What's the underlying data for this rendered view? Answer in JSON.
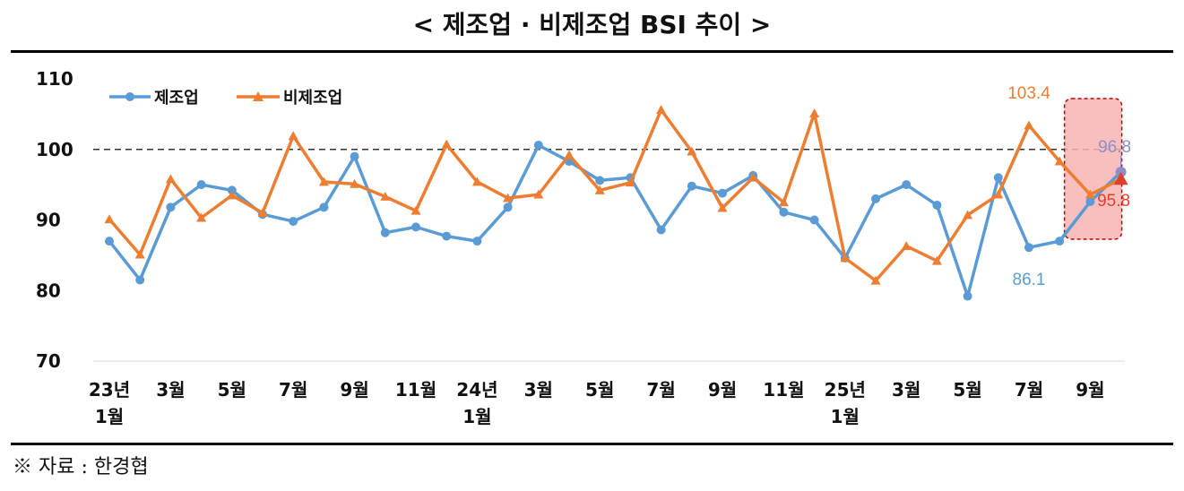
{
  "title": "< 제조업 · 비제조업 BSI 추이 >",
  "source": "※ 자료 : 한경협",
  "colors": {
    "manufacturing": "#5B9BD5",
    "non_manufacturing": "#ED7D31",
    "highlight_fill": "#F8B4B4",
    "highlight_border": "#C00000",
    "reference_line": "#333333"
  },
  "chart_data": {
    "type": "line",
    "title": "< 제조업 · 비제조업 BSI 추이 >",
    "xlabel": "",
    "ylabel": "",
    "ylim": [
      70,
      110
    ],
    "yticks": [
      70,
      80,
      90,
      100,
      110
    ],
    "reference_line": 100,
    "grid": false,
    "legend_position": "top-left",
    "x": [
      "23년 1월",
      "23년 2월",
      "23년 3월",
      "23년 4월",
      "23년 5월",
      "23년 6월",
      "23년 7월",
      "23년 8월",
      "23년 9월",
      "23년 10월",
      "23년 11월",
      "23년 12월",
      "24년 1월",
      "24년 2월",
      "24년 3월",
      "24년 4월",
      "24년 5월",
      "24년 6월",
      "24년 7월",
      "24년 8월",
      "24년 9월",
      "24년 10월",
      "24년 11월",
      "24년 12월",
      "25년 1월",
      "25년 2월",
      "25년 3월",
      "25년 4월",
      "25년 5월",
      "25년 6월",
      "25년 7월",
      "25년 8월",
      "25년 9월",
      "25년 10월"
    ],
    "xtick_labels": [
      {
        "index": 0,
        "lines": [
          "23년",
          "1월"
        ]
      },
      {
        "index": 2,
        "lines": [
          "3월"
        ]
      },
      {
        "index": 4,
        "lines": [
          "5월"
        ]
      },
      {
        "index": 6,
        "lines": [
          "7월"
        ]
      },
      {
        "index": 8,
        "lines": [
          "9월"
        ]
      },
      {
        "index": 10,
        "lines": [
          "11월"
        ]
      },
      {
        "index": 12,
        "lines": [
          "24년",
          "1월"
        ]
      },
      {
        "index": 14,
        "lines": [
          "3월"
        ]
      },
      {
        "index": 16,
        "lines": [
          "5월"
        ]
      },
      {
        "index": 18,
        "lines": [
          "7월"
        ]
      },
      {
        "index": 20,
        "lines": [
          "9월"
        ]
      },
      {
        "index": 22,
        "lines": [
          "11월"
        ]
      },
      {
        "index": 24,
        "lines": [
          "25년",
          "1월"
        ]
      },
      {
        "index": 26,
        "lines": [
          "3월"
        ]
      },
      {
        "index": 28,
        "lines": [
          "5월"
        ]
      },
      {
        "index": 30,
        "lines": [
          "7월"
        ]
      },
      {
        "index": 32,
        "lines": [
          "9월"
        ]
      }
    ],
    "series": [
      {
        "name": "제조업",
        "color": "#5B9BD5",
        "marker": "circle",
        "values": [
          87.0,
          81.5,
          91.8,
          95.0,
          94.2,
          90.8,
          89.8,
          91.8,
          99.0,
          88.2,
          89.0,
          87.7,
          87.0,
          91.8,
          100.6,
          98.3,
          95.6,
          96.0,
          88.6,
          94.8,
          93.8,
          96.3,
          91.1,
          90.0,
          84.6,
          93.0,
          95.0,
          92.1,
          79.2,
          96.0,
          86.1,
          87.0,
          92.6,
          96.8
        ]
      },
      {
        "name": "비제조업",
        "color": "#ED7D31",
        "marker": "triangle",
        "values": [
          90.1,
          85.1,
          95.8,
          90.3,
          93.5,
          91.0,
          101.9,
          95.4,
          95.1,
          93.3,
          91.3,
          100.7,
          95.4,
          93.1,
          93.6,
          99.2,
          94.2,
          95.3,
          105.6,
          99.7,
          91.7,
          96.0,
          92.5,
          105.1,
          84.6,
          81.4,
          86.3,
          84.2,
          90.7,
          93.6,
          103.4,
          98.3,
          93.6,
          95.8
        ]
      }
    ],
    "annotations": [
      {
        "text": "103.4",
        "series": 1,
        "index": 30,
        "color": "#ED7D31"
      },
      {
        "text": "86.1",
        "series": 0,
        "index": 30,
        "color": "#5B9BD5"
      },
      {
        "text": "96.8",
        "series": 0,
        "index": 33,
        "color": "#8E8EC8"
      },
      {
        "text": "95.8",
        "series": 1,
        "index": 33,
        "color": "#E0402A"
      }
    ],
    "highlight_index": 33
  }
}
